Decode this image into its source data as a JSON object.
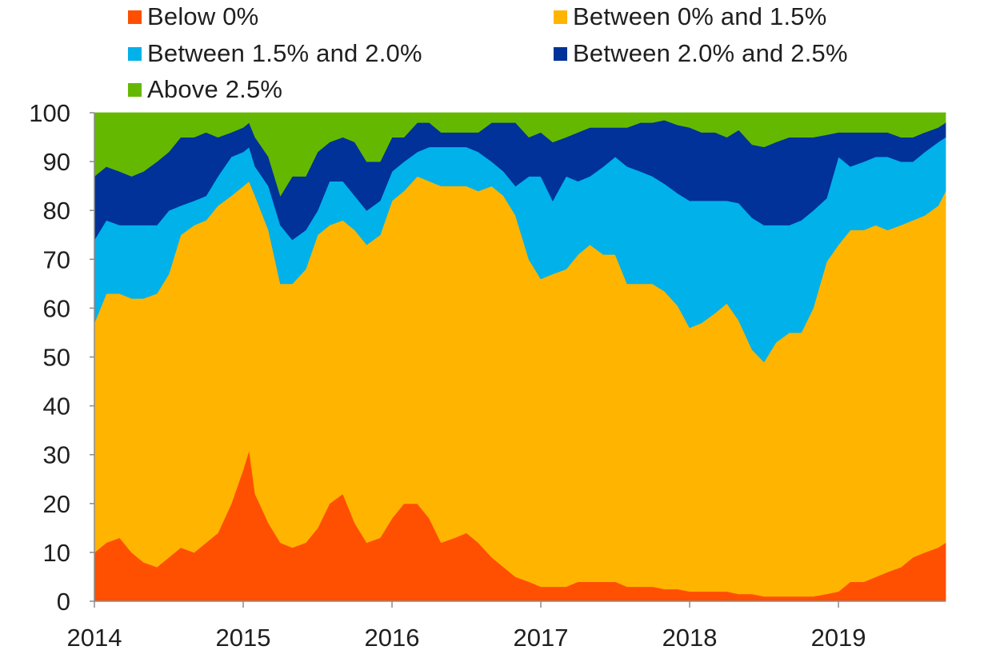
{
  "chart_data": {
    "type": "area",
    "stacked": true,
    "title": "",
    "xlabel": "",
    "ylabel": "",
    "xlim": [
      2014.0,
      2019.72
    ],
    "ylim": [
      0,
      100
    ],
    "yticks": [
      0,
      10,
      20,
      30,
      40,
      50,
      60,
      70,
      80,
      90,
      100
    ],
    "xtick_labels": [
      "2014",
      "2015",
      "2016",
      "2017",
      "2018",
      "2019"
    ],
    "grid": false,
    "legend_position": "top",
    "x": [
      2014.0,
      2014.08,
      2014.17,
      2014.25,
      2014.33,
      2014.42,
      2014.5,
      2014.58,
      2014.67,
      2014.75,
      2014.83,
      2014.92,
      2015.0,
      2015.04,
      2015.08,
      2015.17,
      2015.25,
      2015.33,
      2015.42,
      2015.5,
      2015.58,
      2015.67,
      2015.75,
      2015.83,
      2015.92,
      2016.0,
      2016.08,
      2016.17,
      2016.25,
      2016.33,
      2016.42,
      2016.5,
      2016.58,
      2016.67,
      2016.75,
      2016.83,
      2016.92,
      2017.0,
      2017.08,
      2017.17,
      2017.25,
      2017.33,
      2017.42,
      2017.5,
      2017.58,
      2017.67,
      2017.75,
      2017.83,
      2017.92,
      2018.0,
      2018.08,
      2018.17,
      2018.25,
      2018.33,
      2018.42,
      2018.5,
      2018.58,
      2018.67,
      2018.75,
      2018.83,
      2018.92,
      2019.0,
      2019.08,
      2019.17,
      2019.25,
      2019.33,
      2019.42,
      2019.5,
      2019.58,
      2019.67,
      2019.72
    ],
    "series": [
      {
        "name": "Below 0%",
        "color": "#ff4f00",
        "values": [
          10,
          12,
          13,
          10,
          8,
          7,
          9,
          11,
          10,
          12,
          14,
          20,
          27,
          31,
          22,
          16,
          12,
          11,
          12,
          15,
          20,
          22,
          16,
          12,
          13,
          17,
          20,
          20,
          17,
          12,
          13,
          14,
          12,
          9,
          7,
          5,
          4,
          3,
          3,
          3,
          4,
          4,
          4,
          4,
          3,
          3,
          3,
          2.5,
          2.5,
          2,
          2,
          2,
          2,
          1.5,
          1.5,
          1,
          1,
          1,
          1,
          1,
          1.5,
          2,
          4,
          4,
          5,
          6,
          7,
          9,
          10,
          11,
          12
        ]
      },
      {
        "name": "Between 0% and 1.5%",
        "color": "#ffb400",
        "values": [
          47,
          51,
          50,
          52,
          54,
          56,
          58,
          64,
          67,
          66,
          67,
          63,
          58,
          55,
          61,
          60,
          53,
          54,
          56,
          60,
          57,
          56,
          60,
          61,
          62,
          65,
          64,
          67,
          69,
          73,
          72,
          71,
          72,
          76,
          76,
          74,
          66,
          63,
          64,
          65,
          67,
          69,
          67,
          67,
          62,
          62,
          62,
          61,
          58,
          54,
          55,
          57,
          59,
          56,
          50,
          48,
          52,
          54,
          54,
          59,
          68,
          71,
          72,
          72,
          72,
          70,
          70,
          69,
          69,
          70,
          72
        ]
      },
      {
        "name": "Between 1.5% and 2.0%",
        "color": "#00b1ea",
        "values": [
          17,
          15,
          14,
          15,
          15,
          14,
          13,
          6,
          5,
          5,
          6,
          8,
          7,
          7,
          6,
          9,
          12,
          9,
          8,
          5,
          9,
          8,
          7,
          7,
          7,
          6,
          6,
          5,
          7,
          8,
          8,
          8,
          8,
          5,
          5,
          6,
          17,
          21,
          15,
          19,
          15,
          14,
          18,
          20,
          24,
          23,
          22,
          22,
          23,
          26,
          25,
          23,
          21,
          24,
          27,
          28,
          24,
          22,
          23,
          20,
          13,
          18,
          13,
          14,
          14,
          15,
          13,
          12,
          13,
          13,
          11
        ]
      },
      {
        "name": "Between 2.0% and 2.5%",
        "color": "#003299",
        "values": [
          13,
          11,
          11,
          10,
          11,
          13,
          12,
          14,
          13,
          13,
          8,
          5,
          5,
          5,
          6,
          6,
          6,
          13,
          11,
          12,
          8,
          9,
          11,
          10,
          8,
          7,
          5,
          6,
          5,
          3,
          3,
          3,
          4,
          8,
          10,
          13,
          8,
          9,
          12,
          8,
          10,
          10,
          8,
          6,
          8,
          10,
          11,
          13,
          14,
          15,
          14,
          14,
          13,
          15,
          15,
          16,
          17,
          18,
          17,
          15,
          13,
          5,
          7,
          6,
          5,
          5,
          5,
          5,
          4,
          3,
          3
        ]
      },
      {
        "name": "Above 2.5%",
        "color": "#65b800",
        "values": [
          13,
          11,
          12,
          13,
          12,
          10,
          8,
          5,
          5,
          4,
          5,
          4,
          3,
          2,
          5,
          9,
          17,
          13,
          13,
          8,
          6,
          5,
          6,
          10,
          10,
          5,
          5,
          2,
          2,
          4,
          4,
          4,
          4,
          2,
          2,
          2,
          5,
          4,
          6,
          5,
          4,
          3,
          3,
          3,
          3,
          2,
          2,
          1.5,
          2.5,
          3,
          4,
          4,
          5,
          3.5,
          6.5,
          7,
          6,
          5,
          5,
          5,
          4.5,
          4,
          4,
          4,
          4,
          4,
          5,
          5,
          4,
          3,
          2
        ]
      }
    ]
  }
}
